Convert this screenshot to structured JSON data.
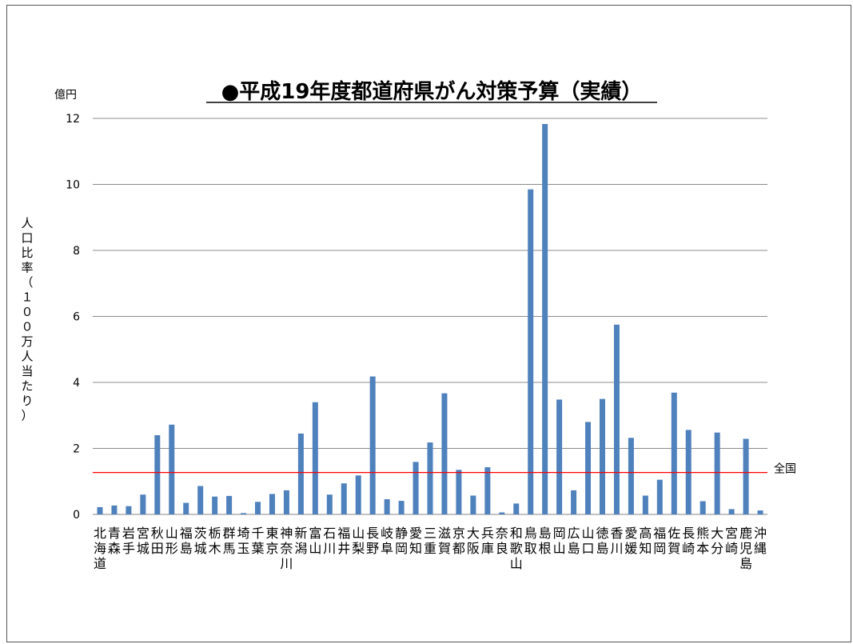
{
  "chart_data": {
    "type": "bar",
    "title": "●平成19年度都道府県がん対策予算（実績）",
    "unit_label": "億円",
    "ylabel": "人口比率（１００万人当たり）",
    "ylim": [
      0,
      12
    ],
    "yticks": [
      0,
      2,
      4,
      6,
      8,
      10,
      12
    ],
    "grid": true,
    "bar_color": "#4F81BD",
    "reference_line": {
      "label": "全国",
      "value": 1.27,
      "color": "#FF0000"
    },
    "categories": [
      "北海道",
      "青森",
      "岩手",
      "宮城",
      "秋田",
      "山形",
      "福島",
      "茨城",
      "栃木",
      "群馬",
      "埼玉",
      "千葉",
      "東京",
      "神奈川",
      "新潟",
      "富山",
      "石川",
      "福井",
      "山梨",
      "長野",
      "岐阜",
      "静岡",
      "愛知",
      "三重",
      "滋賀",
      "京都",
      "大阪",
      "兵庫",
      "奈良",
      "和歌山",
      "鳥取",
      "島根",
      "岡山",
      "広島",
      "山口",
      "徳島",
      "香川",
      "愛媛",
      "高知",
      "福岡",
      "佐賀",
      "長崎",
      "熊本",
      "大分",
      "宮崎",
      "鹿児島",
      "沖縄"
    ],
    "values": [
      0.22,
      0.27,
      0.25,
      0.6,
      2.4,
      2.72,
      0.35,
      0.86,
      0.54,
      0.56,
      0.04,
      0.38,
      0.62,
      0.73,
      2.45,
      3.4,
      0.6,
      0.94,
      1.18,
      4.18,
      0.46,
      0.41,
      1.59,
      2.18,
      3.67,
      1.35,
      0.57,
      1.43,
      0.06,
      0.33,
      9.85,
      11.83,
      3.48,
      0.73,
      2.8,
      3.5,
      5.75,
      2.32,
      0.57,
      1.05,
      3.69,
      2.56,
      0.4,
      2.48,
      0.16,
      2.29,
      0.12
    ]
  }
}
